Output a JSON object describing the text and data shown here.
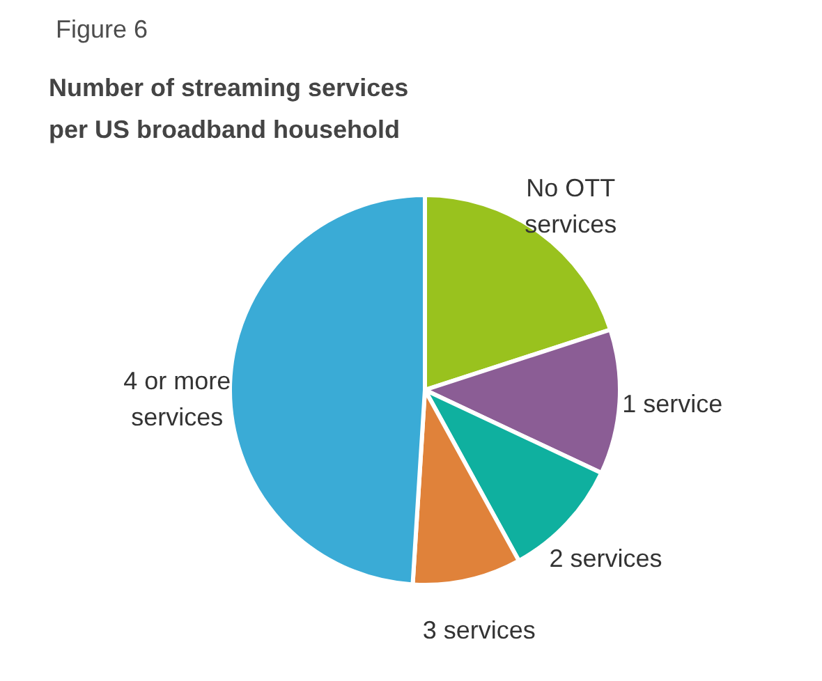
{
  "chart_data": {
    "type": "pie",
    "title": "Number of streaming services per US broadband household",
    "categories": [
      "No OTT services",
      "1 service",
      "2 services",
      "3 services",
      "4 or more services"
    ],
    "values": [
      20,
      12,
      10,
      9,
      49
    ],
    "colors": [
      "#99c21e",
      "#8b5d95",
      "#0fb09f",
      "#e0823a",
      "#3aabd6"
    ],
    "annotations": [
      "Figure 6"
    ],
    "legend": false
  }
}
